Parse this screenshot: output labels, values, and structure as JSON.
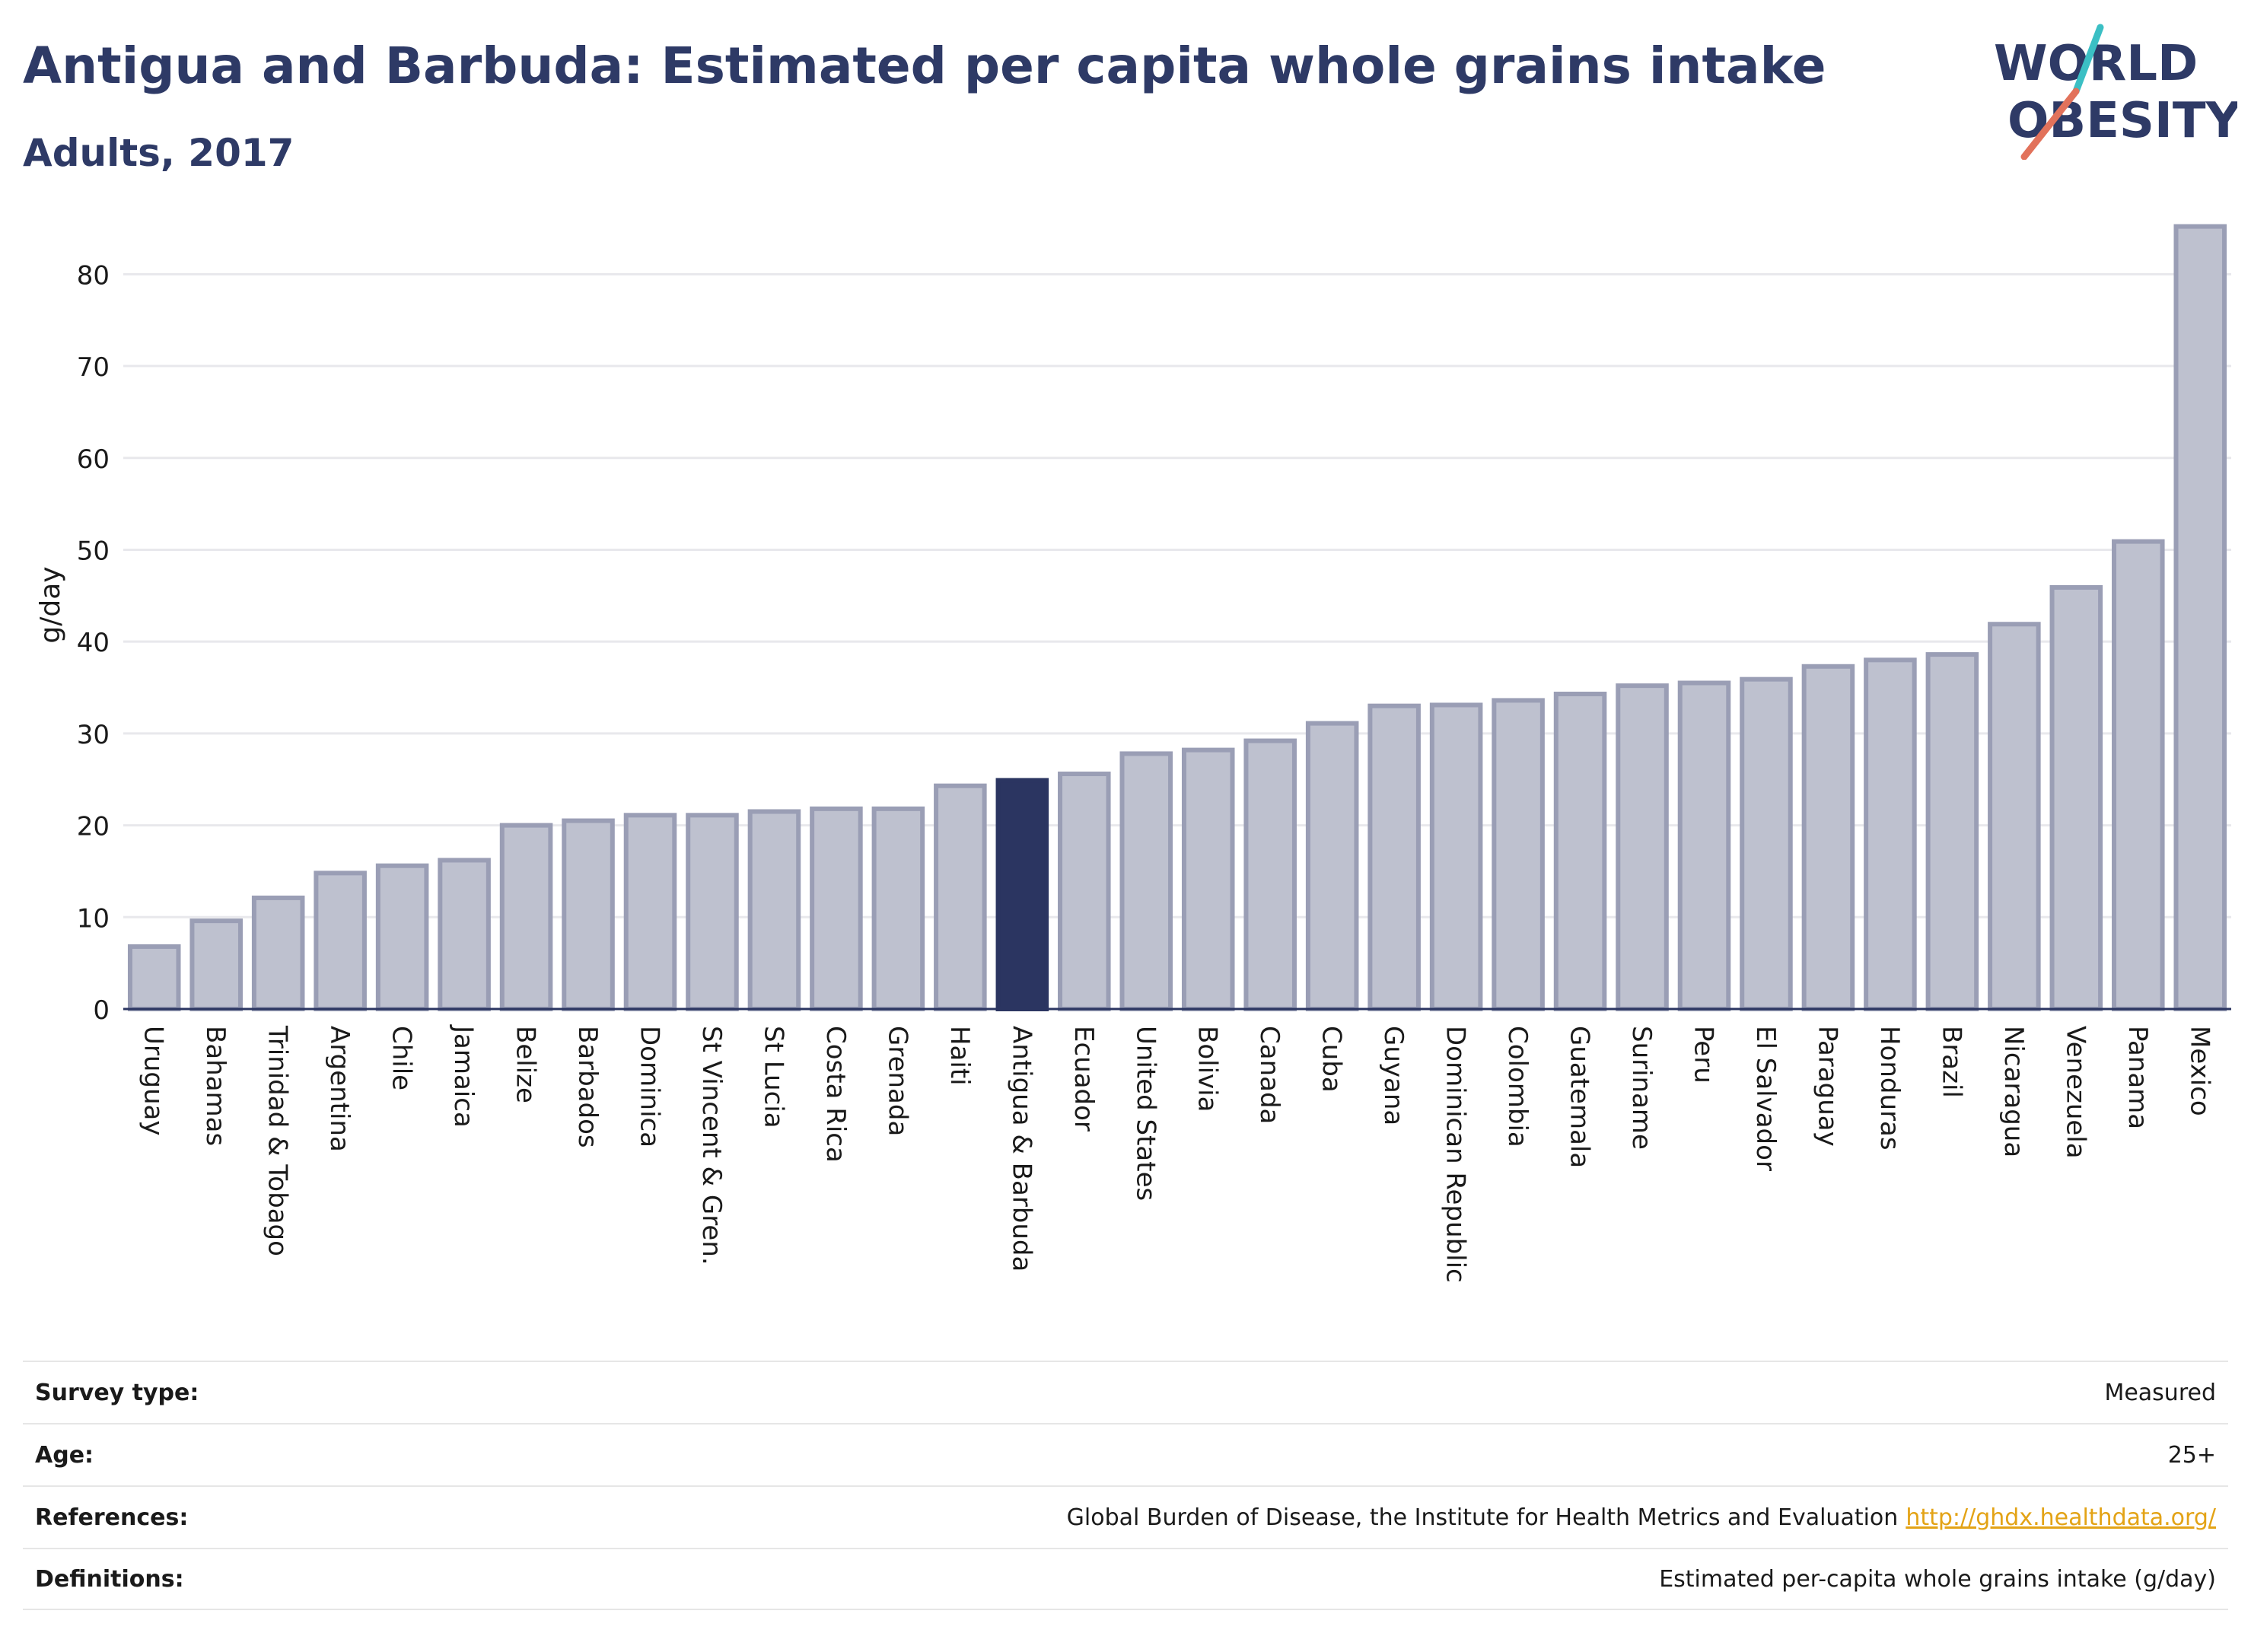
{
  "header": {
    "title": "Antigua and Barbuda: Estimated per capita whole grains intake",
    "subtitle": "Adults, 2017"
  },
  "logo": {
    "line1": "WORLD",
    "line2": "OBESITY",
    "accent_teal": "#3bbfc4",
    "accent_red": "#e2725b"
  },
  "colors": {
    "bar": "#bec1cf",
    "bar_border": "#9a9eb5",
    "highlight": "#2b3561",
    "text_dark": "#2e3a66"
  },
  "chart_data": {
    "type": "bar",
    "ylabel": "g/day",
    "ylim": [
      0,
      85
    ],
    "yticks": [
      0,
      10,
      20,
      30,
      40,
      50,
      60,
      70,
      80
    ],
    "grid": true,
    "highlight_category": "Antigua & Barbuda",
    "categories": [
      "Uruguay",
      "Bahamas",
      "Trinidad & Tobago",
      "Argentina",
      "Chile",
      "Jamaica",
      "Belize",
      "Barbados",
      "Dominica",
      "St Vincent & Gren.",
      "St Lucia",
      "Costa Rica",
      "Grenada",
      "Haiti",
      "Antigua & Barbuda",
      "Ecuador",
      "United States",
      "Bolivia",
      "Canada",
      "Cuba",
      "Guyana",
      "Dominican Republic",
      "Colombia",
      "Guatemala",
      "Suriname",
      "Peru",
      "El Salvador",
      "Paraguay",
      "Honduras",
      "Brazil",
      "Nicaragua",
      "Venezuela",
      "Panama",
      "Mexico"
    ],
    "values": [
      6.8,
      9.6,
      12.1,
      14.8,
      15.6,
      16.2,
      20.0,
      20.5,
      21.1,
      21.1,
      21.5,
      21.8,
      21.8,
      24.3,
      24.9,
      25.6,
      27.8,
      28.2,
      29.2,
      31.1,
      33.0,
      33.1,
      33.6,
      34.3,
      35.2,
      35.5,
      35.9,
      37.3,
      38.0,
      38.6,
      41.9,
      45.9,
      50.9,
      85.2
    ]
  },
  "info": {
    "survey_type_label": "Survey type:",
    "survey_type_value": "Measured",
    "age_label": "Age:",
    "age_value": "25+",
    "references_label": "References:",
    "references_value": "Global Burden of Disease, the Institute for Health Metrics and Evaluation",
    "references_link": "http://ghdx.healthdata.org/",
    "definitions_label": "Definitions:",
    "definitions_value": "Estimated per-capita whole grains intake (g/day)"
  }
}
